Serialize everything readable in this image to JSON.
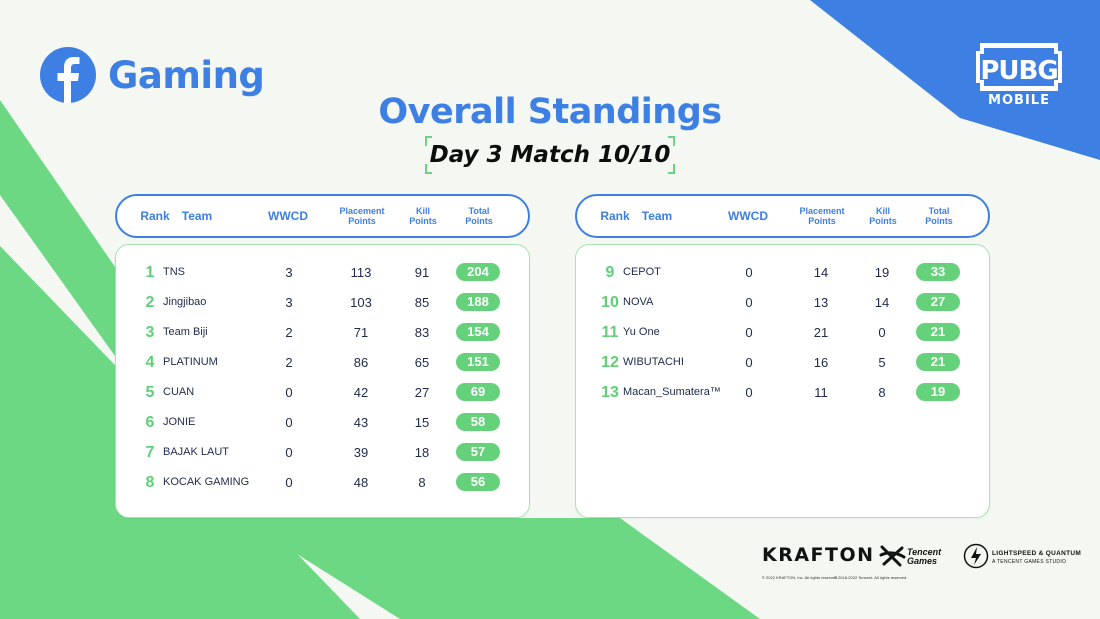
{
  "brand": {
    "name": "Gaming",
    "logo_icon": "facebook-icon"
  },
  "game_logo": {
    "line1": "PUBG",
    "line2": "MOBILE"
  },
  "title": "Overall Standings",
  "subtitle": "Day 3 Match 10/10",
  "columns": {
    "rank": "Rank",
    "team": "Team",
    "wwcd": "WWCD",
    "placement_line1": "Placement",
    "placement_line2": "Points",
    "kill_line1": "Kill",
    "kill_line2": "Points",
    "total_line1": "Total",
    "total_line2": "Points"
  },
  "left_table": [
    {
      "rank": "1",
      "team": "TNS",
      "wwcd": "3",
      "placement": "113",
      "kill": "91",
      "total": "204"
    },
    {
      "rank": "2",
      "team": "Jingjibao",
      "wwcd": "3",
      "placement": "103",
      "kill": "85",
      "total": "188"
    },
    {
      "rank": "3",
      "team": "Team Biji",
      "wwcd": "2",
      "placement": "71",
      "kill": "83",
      "total": "154"
    },
    {
      "rank": "4",
      "team": "PLATINUM",
      "wwcd": "2",
      "placement": "86",
      "kill": "65",
      "total": "151"
    },
    {
      "rank": "5",
      "team": "CUAN",
      "wwcd": "0",
      "placement": "42",
      "kill": "27",
      "total": "69"
    },
    {
      "rank": "6",
      "team": "JONIE",
      "wwcd": "0",
      "placement": "43",
      "kill": "15",
      "total": "58"
    },
    {
      "rank": "7",
      "team": "BAJAK LAUT",
      "wwcd": "0",
      "placement": "39",
      "kill": "18",
      "total": "57"
    },
    {
      "rank": "8",
      "team": "KOCAK GAMING",
      "wwcd": "0",
      "placement": "48",
      "kill": "8",
      "total": "56"
    }
  ],
  "right_table": [
    {
      "rank": "9",
      "team": "CEPOT",
      "wwcd": "0",
      "placement": "14",
      "kill": "19",
      "total": "33"
    },
    {
      "rank": "10",
      "team": "NOVA",
      "wwcd": "0",
      "placement": "13",
      "kill": "14",
      "total": "27"
    },
    {
      "rank": "11",
      "team": "Yu One",
      "wwcd": "0",
      "placement": "21",
      "kill": "0",
      "total": "21"
    },
    {
      "rank": "12",
      "team": "WIBUTACHI",
      "wwcd": "0",
      "placement": "16",
      "kill": "5",
      "total": "21"
    },
    {
      "rank": "13",
      "team": "Macan_Sumatera™",
      "wwcd": "0",
      "placement": "11",
      "kill": "8",
      "total": "19"
    }
  ],
  "sponsors": {
    "krafton": "KRAFTON",
    "tencent_line1": "Tencent",
    "tencent_line2": "Games",
    "lightspeed_line1": "LIGHTSPEED & QUANTUM",
    "lightspeed_line2": "A TENCENT GAMES STUDIO",
    "krafton_copyright": "© 2022 KRAFTON, Inc. All rights reserved.",
    "tencent_copyright": "© 2018-2022 Tencent. All rights reserved."
  },
  "colors": {
    "accent_blue": "#3d7fe2",
    "accent_green": "#66d17b",
    "background": "#f4f7f2",
    "text_dark": "#1f2a4d"
  }
}
